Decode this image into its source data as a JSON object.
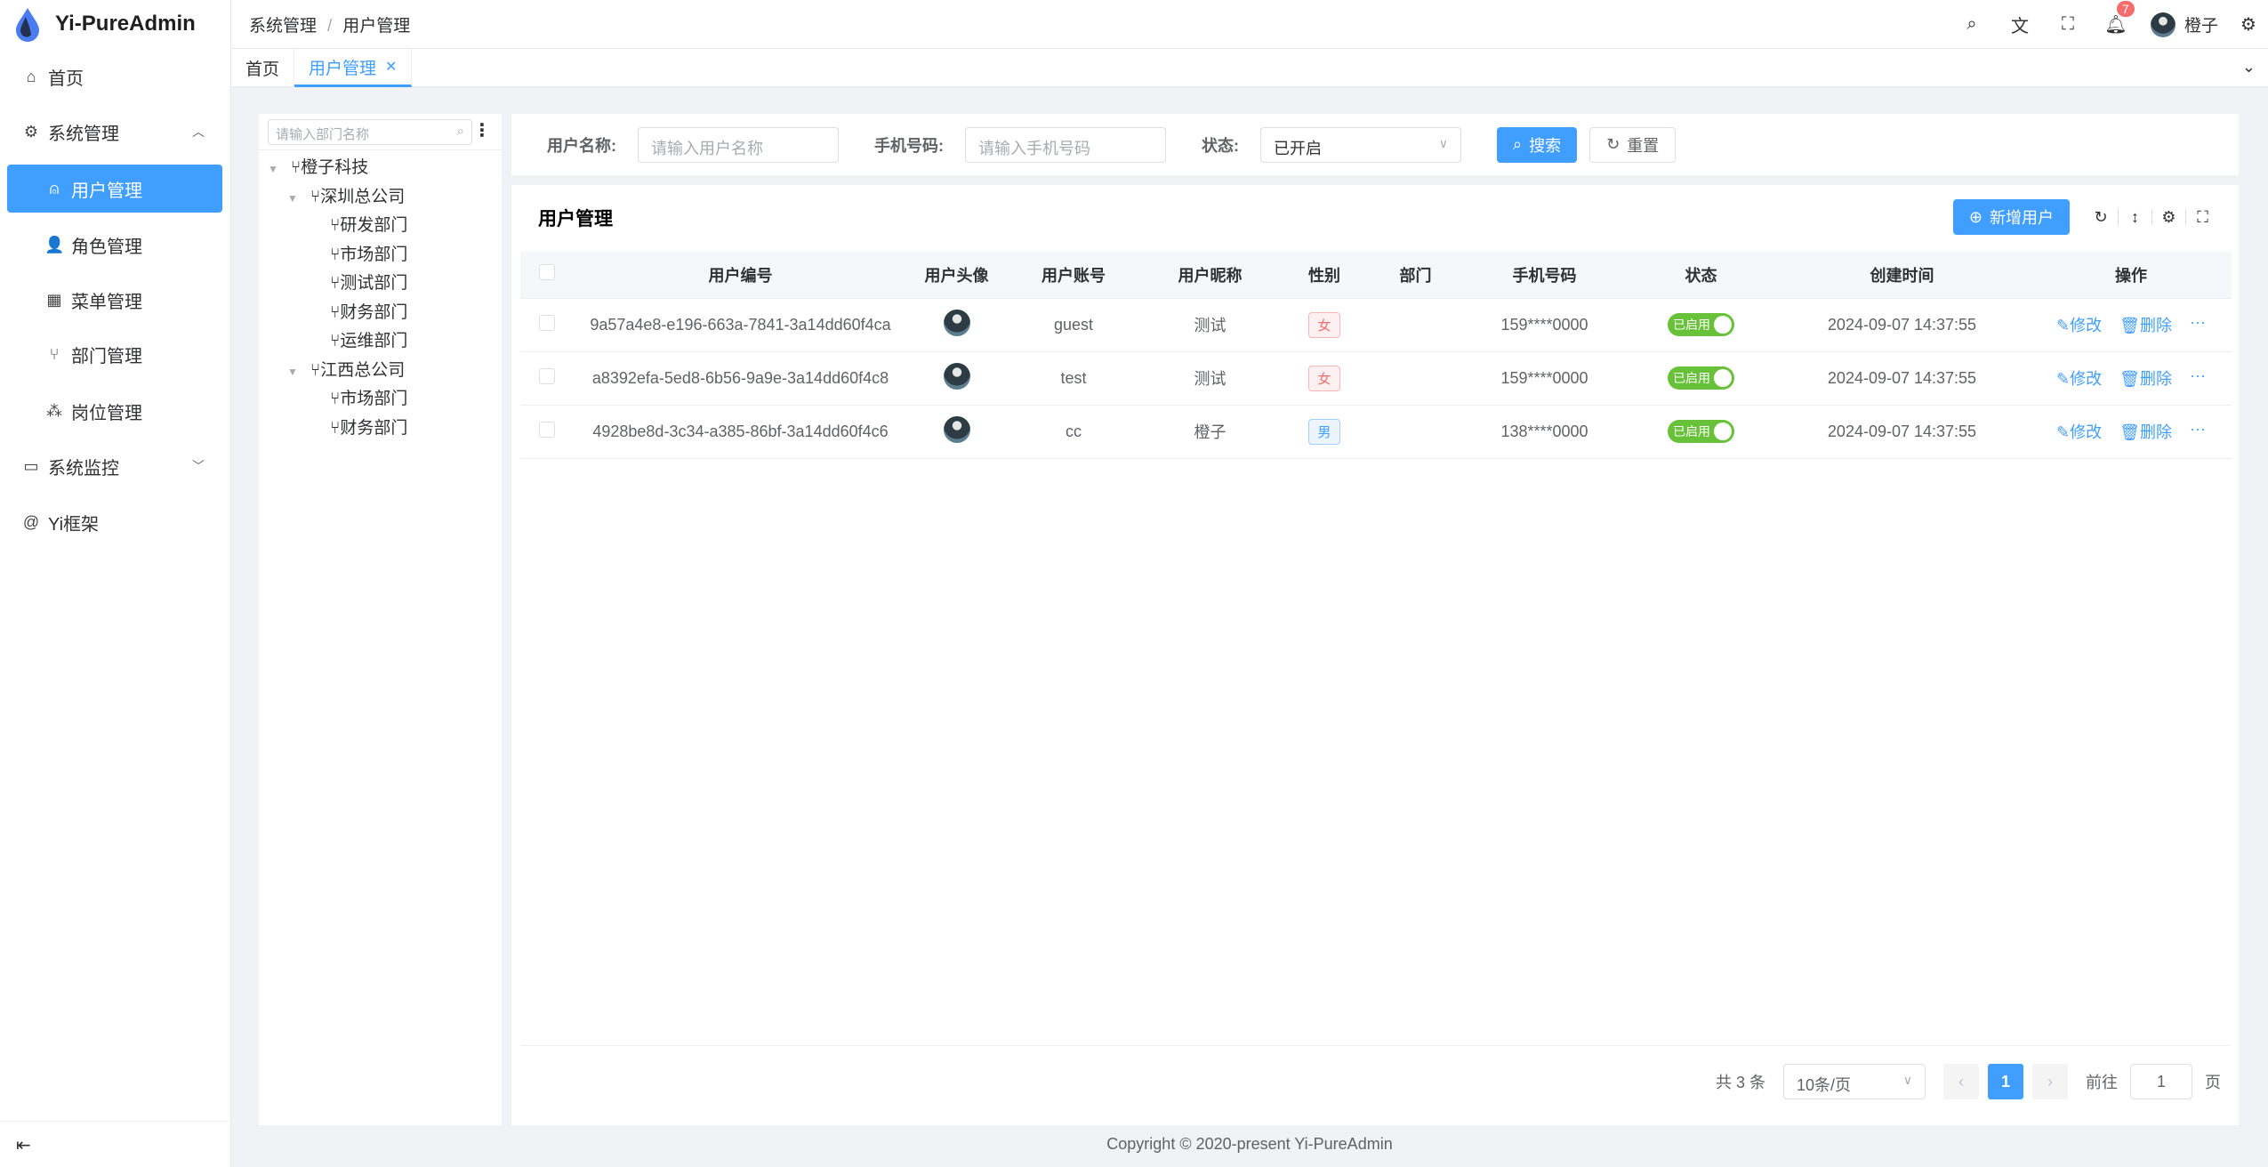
{
  "app": {
    "title": "Yi-PureAdmin",
    "accent": "#409eff"
  },
  "sidebar": {
    "items": [
      {
        "label": "首页",
        "icon": "home-icon"
      },
      {
        "label": "系统管理",
        "icon": "gear-icon",
        "expanded": true
      },
      {
        "label": "用户管理",
        "icon": "user-icon",
        "active": true
      },
      {
        "label": "角色管理",
        "icon": "role-icon"
      },
      {
        "label": "菜单管理",
        "icon": "grid-icon"
      },
      {
        "label": "部门管理",
        "icon": "branch-icon"
      },
      {
        "label": "岗位管理",
        "icon": "org-icon"
      },
      {
        "label": "系统监控",
        "icon": "monitor-icon"
      },
      {
        "label": "Yi框架",
        "icon": "at-icon"
      }
    ]
  },
  "header": {
    "breadcrumb": [
      "系统管理",
      "用户管理"
    ],
    "notifications": "7",
    "username": "橙子"
  },
  "tabs": [
    {
      "label": "首页"
    },
    {
      "label": "用户管理",
      "active": true
    }
  ],
  "tree": {
    "placeholder": "请输入部门名称",
    "nodes": [
      "橙子科技",
      "深圳总公司",
      "研发部门",
      "市场部门",
      "测试部门",
      "财务部门",
      "运维部门",
      "江西总公司",
      "市场部门",
      "财务部门"
    ]
  },
  "search": {
    "username_label": "用户名称:",
    "username_placeholder": "请输入用户名称",
    "phone_label": "手机号码:",
    "phone_placeholder": "请输入手机号码",
    "status_label": "状态:",
    "status_value": "已开启",
    "search_btn": "搜索",
    "reset_btn": "重置"
  },
  "table": {
    "title": "用户管理",
    "add_btn": "新增用户",
    "columns": [
      "用户编号",
      "用户头像",
      "用户账号",
      "用户昵称",
      "性别",
      "部门",
      "手机号码",
      "状态",
      "创建时间",
      "操作"
    ],
    "rows": [
      {
        "id": "9a57a4e8-e196-663a-7841-3a14dd60f4ca",
        "account": "guest",
        "nickname": "测试",
        "gender": "女",
        "dept": "",
        "phone": "159****0000",
        "status": "已启用",
        "created": "2024-09-07 14:37:55"
      },
      {
        "id": "a8392efa-5ed8-6b56-9a9e-3a14dd60f4c8",
        "account": "test",
        "nickname": "测试",
        "gender": "女",
        "dept": "",
        "phone": "159****0000",
        "status": "已启用",
        "created": "2024-09-07 14:37:55"
      },
      {
        "id": "4928be8d-3c34-a385-86bf-3a14dd60f4c6",
        "account": "cc",
        "nickname": "橙子",
        "gender": "男",
        "dept": "",
        "phone": "138****0000",
        "status": "已启用",
        "created": "2024-09-07 14:37:55"
      }
    ],
    "edit": "修改",
    "delete": "删除"
  },
  "pagination": {
    "total": "共 3 条",
    "page_size": "10条/页",
    "current": "1",
    "goto_label": "前往",
    "goto_value": "1",
    "page_suffix": "页"
  },
  "footer": "Copyright © 2020-present Yi-PureAdmin"
}
